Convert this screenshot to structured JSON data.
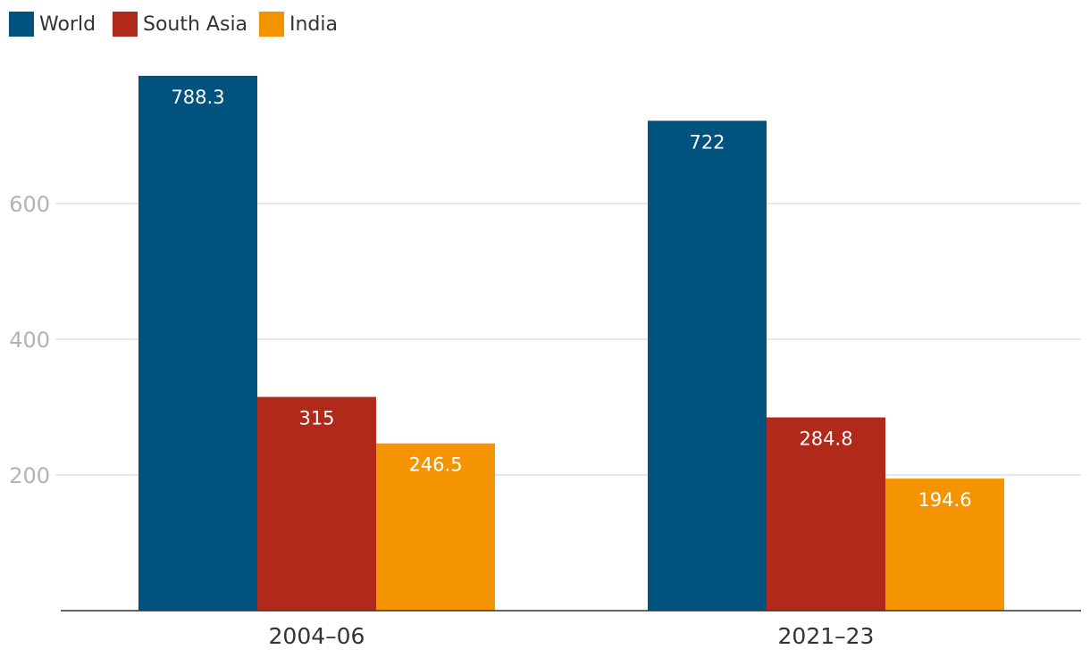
{
  "chart_data": {
    "type": "bar",
    "categories": [
      "2004–06",
      "2021–23"
    ],
    "series": [
      {
        "name": "World",
        "values": [
          788.3,
          722
        ],
        "labels": [
          "788.3",
          "722"
        ],
        "color": "#01527d"
      },
      {
        "name": "South Asia",
        "values": [
          315,
          284.8
        ],
        "labels": [
          "315",
          "284.8"
        ],
        "color": "#b0291a"
      },
      {
        "name": "India",
        "values": [
          246.5,
          194.6
        ],
        "labels": [
          "246.5",
          "194.6"
        ],
        "color": "#f39400"
      }
    ],
    "yticks": [
      200,
      400,
      600
    ],
    "ytick_labels": [
      "200",
      "400",
      "600"
    ],
    "ylim": [
      0,
      800
    ],
    "grid": true,
    "legend_position": "top-left",
    "title": "",
    "xlabel": "",
    "ylabel": ""
  }
}
